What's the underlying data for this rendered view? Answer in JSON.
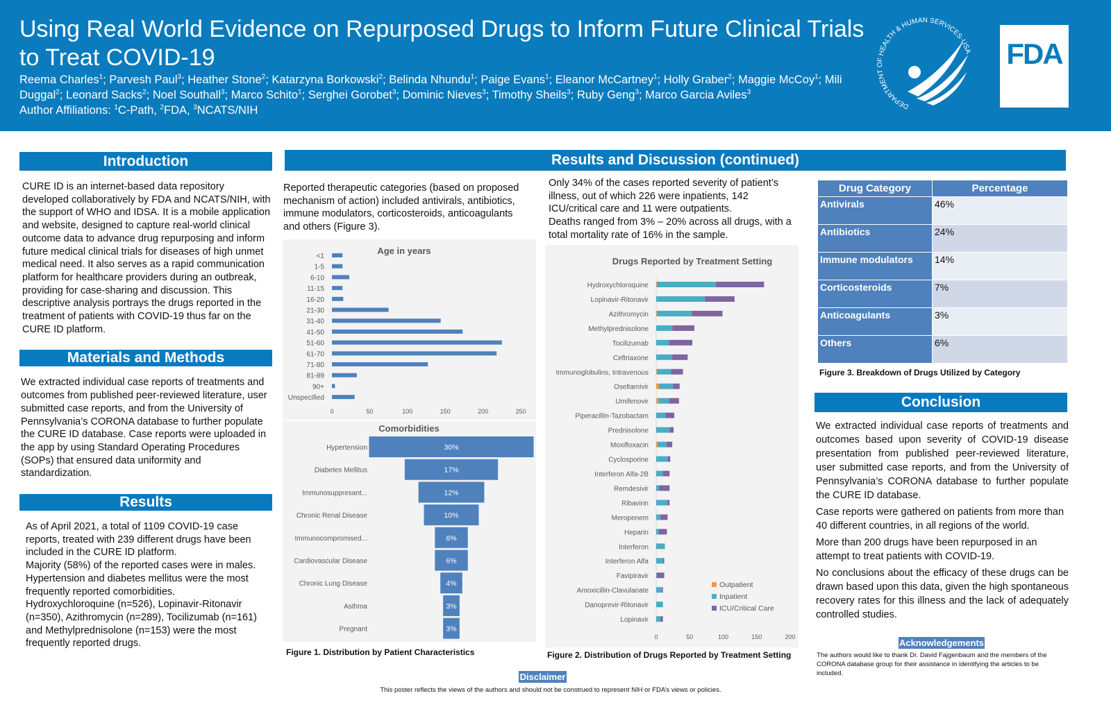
{
  "header": {
    "title": "Using Real World Evidence on Repurposed Drugs to Inform Future Clinical Trials to Treat COVID-19",
    "authors": [
      {
        "name": "Reema Charles",
        "aff": "1"
      },
      {
        "name": "Parvesh Paul",
        "aff": "3"
      },
      {
        "name": "Heather Stone",
        "aff": "2"
      },
      {
        "name": "Katarzyna Borkowski",
        "aff": "2"
      },
      {
        "name": "Belinda Nhundu",
        "aff": "1"
      },
      {
        "name": "Paige Evans",
        "aff": "1"
      },
      {
        "name": "Eleanor McCartney",
        "aff": "1"
      },
      {
        "name": "Holly Graber",
        "aff": "2"
      },
      {
        "name": "Maggie McCoy",
        "aff": "1"
      },
      {
        "name": "Mili Duggal",
        "aff": "2"
      },
      {
        "name": "Leonard Sacks",
        "aff": "2"
      },
      {
        "name": "Noel Southall",
        "aff": "3"
      },
      {
        "name": "Marco Schito",
        "aff": "1"
      },
      {
        "name": "Serghei Gorobet",
        "aff": "3"
      },
      {
        "name": "Dominic Nieves",
        "aff": "3"
      },
      {
        "name": "Timothy Sheils",
        "aff": "3"
      },
      {
        "name": "Ruby Geng",
        "aff": "3"
      },
      {
        "name": "Marco Garcia Aviles",
        "aff": "3"
      }
    ],
    "affiliations_label": "Author Affiliations: ",
    "affiliations": [
      {
        "n": "1",
        "name": "C-Path"
      },
      {
        "n": "2",
        "name": "FDA"
      },
      {
        "n": "3",
        "name": "NCATS/NIH"
      }
    ],
    "hhs_logo_text": "DEPARTMENT OF HEALTH & HUMAN SERVICES·USA",
    "fda_logo": "FDA"
  },
  "introduction": {
    "heading": "Introduction",
    "body": "CURE ID is an internet-based data repository developed collaboratively by FDA and NCATS/NIH, with the support of WHO and IDSA. It is a mobile application and website, designed to capture real-world clinical outcome data to advance drug repurposing and inform future medical clinical trials for diseases of high unmet medical need. It also serves as a rapid communication platform for healthcare providers during an outbreak, providing for case-sharing and discussion. This descriptive analysis portrays the drugs reported in the treatment of patients with COVID-19 thus far on the CURE ID platform."
  },
  "methods": {
    "heading": "Materials and Methods",
    "body": "We extracted individual case reports of treatments and outcomes from published peer-reviewed literature, user submitted case reports, and from the University of Pennsylvania’s CORONA database to further populate the CURE ID database. Case reports were uploaded in the app by using Standard Operating Procedures (SOPs) that ensured data uniformity and standardization."
  },
  "results": {
    "heading": "Results",
    "paragraphs": [
      "As of April 2021, a total of 1109 COVID-19 case reports, treated with 239 different drugs have been included in the CURE ID platform.",
      "Majority (58%) of the reported cases were in males. Hypertension and diabetes mellitus were the most frequently reported comorbidities.",
      "Hydroxychloroquine (n=526), Lopinavir-Ritonavir (n=350), Azithromycin (n=289), Tocilizumab (n=161) and Methylprednisolone (n=153) were the most frequently reported drugs."
    ]
  },
  "results_cont": {
    "heading": "Results and Discussion (continued)",
    "col2_text": "Reported therapeutic categories (based on proposed mechanism of action) included antivirals, antibiotics, immune modulators, corticosteroids, anticoagulants and others (Figure 3).",
    "col3_paragraphs": [
      "Only 34% of the cases reported severity of patient’s illness, out of which 226 were inpatients, 142 ICU/critical care and 11 were outpatients.",
      "Deaths ranged from 3% – 20% across all drugs, with a total mortality rate of 16% in the sample."
    ],
    "figure1_caption": "Figure 1. Distribution by Patient Characteristics",
    "figure2_caption": "Figure 2. Distribution of Drugs Reported by Treatment Setting",
    "figure3_caption": "Figure 3. Breakdown of Drugs Utilized by Category"
  },
  "drug_table": {
    "headers": [
      "Drug Category",
      "Percentage"
    ],
    "rows": [
      [
        "Antivirals",
        "46%"
      ],
      [
        "Antibiotics",
        "24%"
      ],
      [
        "Immune modulators",
        "14%"
      ],
      [
        "Corticosteroids",
        "7%"
      ],
      [
        "Anticoagulants",
        "3%"
      ],
      [
        "Others",
        "6%"
      ]
    ]
  },
  "conclusion": {
    "heading": "Conclusion",
    "paragraphs": [
      "We extracted individual case reports of treatments and outcomes based upon severity of COVID-19 disease presentation from published peer-reviewed literature, user submitted case reports, and from the University of Pennsylvania’s CORONA database to further populate the CURE ID database.",
      "Case reports were gathered on patients from more than 40 different countries, in all regions of the world.",
      "More than 200 drugs have been repurposed in an attempt to treat patients with COVID-19.",
      "No conclusions about the efficacy of these drugs can be drawn based upon this data, given the high spontaneous recovery rates for this illness and the lack of adequately controlled studies."
    ]
  },
  "acknowledgements": {
    "heading": "Acknowledgements",
    "body": "The authors would like to thank Dr. David Fajgenbaum and the members of the CORONA database group for their assistance in identifying the articles to be included."
  },
  "disclaimer": {
    "heading": "Disclaimer",
    "body": "This poster reflects the views of the authors and should not be construed to represent NIH or FDA’s views or policies."
  },
  "colors": {
    "header": "#0a7bbd",
    "section_bar": "#0a7abf",
    "bar_blue": "#4f81bd",
    "outpatient": "#f79646",
    "inpatient": "#4bacc6",
    "icu": "#8064a2"
  },
  "chart_data": [
    {
      "type": "bar",
      "orientation": "horizontal",
      "title": "Age in years",
      "categories": [
        "<1",
        "1-5",
        "6-10",
        "11-15",
        "16-20",
        "21-30",
        "31-40",
        "41-50",
        "51-60",
        "61-70",
        "71-80",
        "81-89",
        "90+",
        "Unspecified"
      ],
      "values": [
        14,
        14,
        23,
        14,
        15,
        75,
        144,
        173,
        225,
        218,
        127,
        33,
        4,
        30
      ],
      "xlim": [
        0,
        250
      ],
      "xticks": [
        0,
        50,
        100,
        150,
        200,
        250
      ],
      "grid": false
    },
    {
      "type": "bar",
      "orientation": "horizontal",
      "style": "funnel",
      "title": "Comorbidities",
      "categories": [
        "Hypertension",
        "Diabetes Mellitus",
        "Immunosuppresant...",
        "Chronic Renal Disease",
        "Immunocompromised...",
        "Cardiovascular Disease",
        "Chronic Lung Disease",
        "Asthma",
        "Pregnant"
      ],
      "values": [
        30,
        17,
        12,
        10,
        6,
        6,
        4,
        3,
        3
      ],
      "data_labels": [
        "30%",
        "17%",
        "12%",
        "10%",
        "6%",
        "6%",
        "4%",
        "3%",
        "3%"
      ]
    },
    {
      "type": "bar",
      "orientation": "horizontal",
      "stacked": true,
      "title": "Drugs Reported by Treatment Setting",
      "categories": [
        "Hydroxychloroquine",
        "Lopinavir-Ritonavir",
        "Azithromycin",
        "Methylprednisolone",
        "Tocilizumab",
        "Ceftriaxone",
        "Immunoglobulins, Intravenous",
        "Oseltamivir",
        "Umifenovir",
        "Piperacillin-Tazobactam",
        "Prednisolone",
        "Moxifloxacin",
        "Cyclosporine",
        "Interferon Alfa-2B",
        "Remdesivir",
        "Ribavirin",
        "Meropenem",
        "Heparin",
        "Interferon",
        "Interferon Alfa",
        "Favipiravir",
        "Amoxicillin-Clavulanate",
        "Danoprevir-Ritonavir",
        "Lopinavir"
      ],
      "series": [
        {
          "name": "Outpatient",
          "values": [
            1,
            0,
            1,
            0,
            0,
            0,
            1,
            4,
            3,
            0,
            0,
            2,
            0,
            0,
            0,
            0,
            0,
            0,
            0,
            0,
            0,
            0,
            0,
            0
          ]
        },
        {
          "name": "Inpatient",
          "values": [
            88,
            73,
            52,
            24,
            19,
            24,
            21,
            21,
            16,
            14,
            20,
            14,
            17,
            10,
            4,
            17,
            6,
            4,
            13,
            10,
            1,
            8,
            10,
            6
          ]
        },
        {
          "name": "ICU/Critical Care",
          "values": [
            72,
            44,
            46,
            33,
            35,
            23,
            18,
            10,
            15,
            13,
            6,
            8,
            4,
            10,
            16,
            3,
            11,
            12,
            0,
            2,
            11,
            2,
            0,
            4
          ]
        }
      ],
      "xlim": [
        0,
        200
      ],
      "xticks": [
        0,
        50,
        100,
        150,
        200
      ],
      "legend": "bottom-right",
      "grid": false
    }
  ]
}
